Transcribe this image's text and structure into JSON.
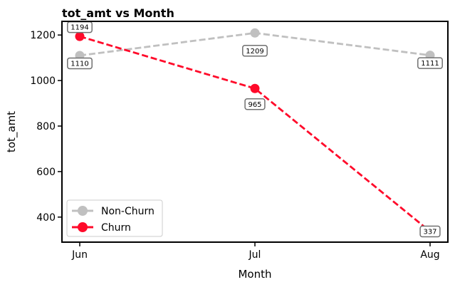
{
  "chart_data": {
    "type": "line",
    "title": "tot_amt vs Month",
    "xlabel": "Month",
    "ylabel": "tot_amt",
    "categories": [
      "Jun",
      "Jul",
      "Aug"
    ],
    "ylim": [
      290,
      1260
    ],
    "yticks": [
      400,
      600,
      800,
      1000,
      1200
    ],
    "grid": false,
    "legend_position": "lower-left",
    "series": [
      {
        "name": "Non-Churn",
        "values": [
          1110,
          1209,
          1111
        ],
        "color": "#c0c0c0",
        "line_style": "dashed",
        "label_position": "below"
      },
      {
        "name": "Churn",
        "values": [
          1194,
          965,
          337
        ],
        "color": "#ff0a2a",
        "line_style": "dashed",
        "label_position": "varied"
      }
    ]
  }
}
